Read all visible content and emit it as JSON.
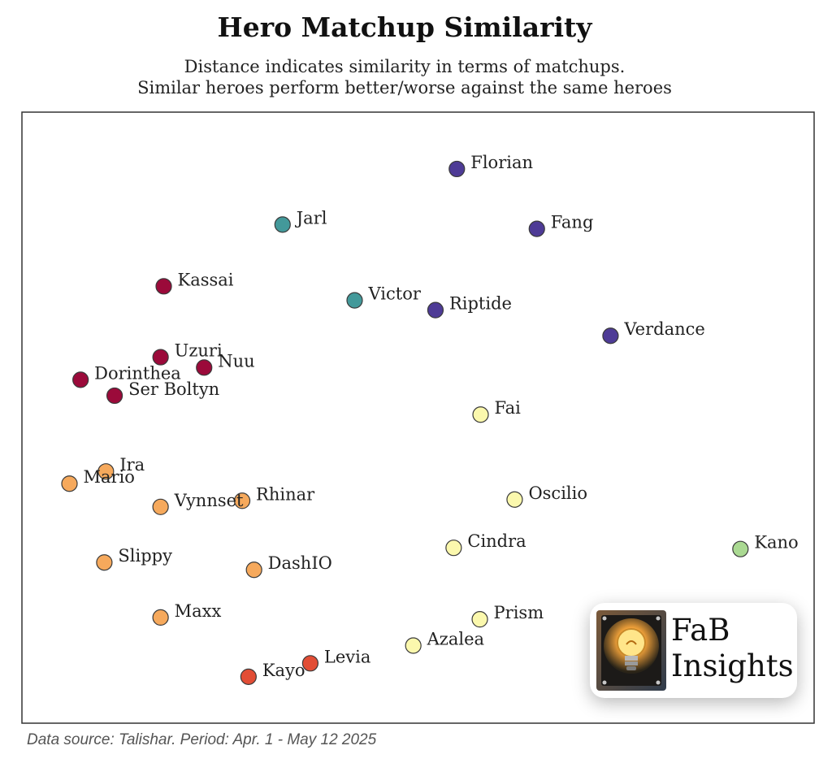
{
  "chart_data": {
    "type": "scatter",
    "title": "Hero Matchup Similarity",
    "subtitle_line1": "Distance indicates similarity in terms of matchups.",
    "subtitle_line2": "Similar heroes perform better/worse against the same heroes",
    "source": "Data source: Talishar. Period: Apr. 1 - May 12 2025",
    "axes_visible": false,
    "grid": false,
    "xlim": [
      0,
      1000
    ],
    "ylim": [
      0,
      1000
    ],
    "colors": {
      "crimson": "#9b0a3a",
      "teal": "#43999a",
      "indigo": "#4e3b96",
      "yellow": "#fbf8ad",
      "orange": "#f6a95c",
      "red": "#e24d35",
      "green": "#aad992"
    },
    "points": [
      {
        "label": "Florian",
        "x": 549,
        "y": 907,
        "color": "indigo"
      },
      {
        "label": "Jarl",
        "x": 329,
        "y": 816,
        "color": "teal"
      },
      {
        "label": "Fang",
        "x": 650,
        "y": 809,
        "color": "indigo"
      },
      {
        "label": "Kassai",
        "x": 179,
        "y": 715,
        "color": "crimson"
      },
      {
        "label": "Victor",
        "x": 420,
        "y": 692,
        "color": "teal"
      },
      {
        "label": "Riptide",
        "x": 522,
        "y": 676,
        "color": "indigo"
      },
      {
        "label": "Verdance",
        "x": 743,
        "y": 634,
        "color": "indigo"
      },
      {
        "label": "Uzuri",
        "x": 175,
        "y": 599,
        "color": "crimson"
      },
      {
        "label": "Nuu",
        "x": 230,
        "y": 582,
        "color": "crimson"
      },
      {
        "label": "Dorinthea",
        "x": 74,
        "y": 562,
        "color": "crimson"
      },
      {
        "label": "Ser Boltyn",
        "x": 117,
        "y": 536,
        "color": "crimson"
      },
      {
        "label": "Fai",
        "x": 579,
        "y": 505,
        "color": "yellow"
      },
      {
        "label": "Ira",
        "x": 106,
        "y": 412,
        "color": "orange"
      },
      {
        "label": "Mario",
        "x": 60,
        "y": 392,
        "color": "orange"
      },
      {
        "label": "Rhinar",
        "x": 278,
        "y": 364,
        "color": "orange"
      },
      {
        "label": "Vynnset",
        "x": 175,
        "y": 354,
        "color": "orange"
      },
      {
        "label": "Oscilio",
        "x": 622,
        "y": 366,
        "color": "yellow"
      },
      {
        "label": "Cindra",
        "x": 545,
        "y": 287,
        "color": "yellow"
      },
      {
        "label": "Kano",
        "x": 907,
        "y": 285,
        "color": "green"
      },
      {
        "label": "Slippy",
        "x": 104,
        "y": 263,
        "color": "orange"
      },
      {
        "label": "DashIO",
        "x": 293,
        "y": 251,
        "color": "orange"
      },
      {
        "label": "Maxx",
        "x": 175,
        "y": 173,
        "color": "orange"
      },
      {
        "label": "Prism",
        "x": 578,
        "y": 170,
        "color": "yellow"
      },
      {
        "label": "Azalea",
        "x": 494,
        "y": 127,
        "color": "yellow"
      },
      {
        "label": "Levia",
        "x": 364,
        "y": 98,
        "color": "red"
      },
      {
        "label": "Kayo",
        "x": 286,
        "y": 76,
        "color": "red"
      }
    ]
  },
  "logo": {
    "line1": "FaB",
    "line2": "Insights"
  }
}
